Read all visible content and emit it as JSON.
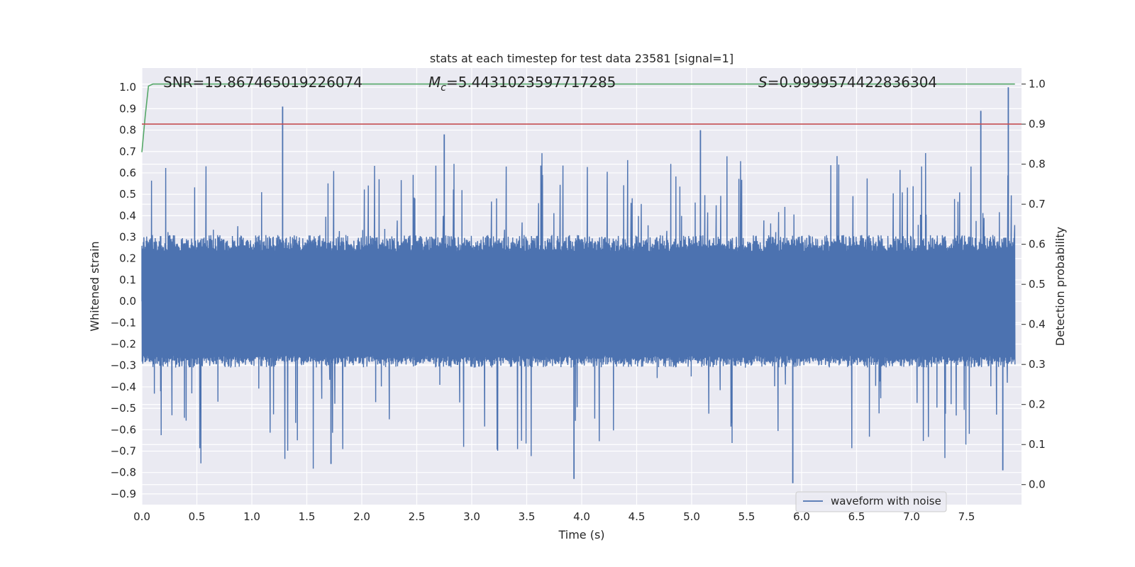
{
  "chart_data": {
    "type": "line",
    "title": "stats at each timestep for test data 23581 [signal=1]",
    "xlabel": "Time (s)",
    "ylabel": "Whitened strain",
    "y2label": "Detection probability",
    "xlim": [
      0.0,
      8.0
    ],
    "ylim": [
      -0.95,
      1.09
    ],
    "y2lim": [
      -0.05,
      1.04
    ],
    "xticks": [
      "0.0",
      "0.5",
      "1.0",
      "1.5",
      "2.0",
      "2.5",
      "3.0",
      "3.5",
      "4.0",
      "4.5",
      "5.0",
      "5.5",
      "6.0",
      "6.5",
      "7.0",
      "7.5"
    ],
    "yticks": [
      "1.0",
      "0.9",
      "0.8",
      "0.7",
      "0.6",
      "0.5",
      "0.4",
      "0.3",
      "0.2",
      "0.1",
      "0.0",
      "−0.1",
      "−0.2",
      "−0.3",
      "−0.4",
      "−0.5",
      "−0.6",
      "−0.7",
      "−0.8",
      "−0.9"
    ],
    "y2ticks": [
      "1.0",
      "0.9",
      "0.8",
      "0.7",
      "0.6",
      "0.5",
      "0.4",
      "0.3",
      "0.2",
      "0.1",
      "0.0"
    ],
    "grid": true,
    "legend": "bottom-center",
    "annotations": {
      "snr": "SNR=15.867465019226074",
      "mc_symbol": "M",
      "mc_sub": "c",
      "mc_value": "=5.4431023597717285",
      "s_symbol": "S",
      "s_value": "=0.9999574422836304"
    },
    "series": [
      {
        "name": "waveform with noise",
        "axis": "left",
        "color": "#4c72b0",
        "description_of_envelope": "dense noise spanning roughly -0.3..0.25 with spikes",
        "x_range": [
          0.0,
          7.94
        ],
        "y_range": [
          -0.85,
          1.0
        ],
        "notable_peaks": [
          {
            "x": 1.28,
            "y": 0.91
          },
          {
            "x": 7.63,
            "y": 0.89
          },
          {
            "x": 7.88,
            "y": 1.0
          },
          {
            "x": 2.75,
            "y": 0.78
          },
          {
            "x": 5.08,
            "y": 0.8
          },
          {
            "x": 5.92,
            "y": -0.85
          },
          {
            "x": 3.93,
            "y": -0.83
          },
          {
            "x": 1.72,
            "y": -0.76
          },
          {
            "x": 7.83,
            "y": -0.79
          }
        ]
      },
      {
        "name": "",
        "axis": "right",
        "color": "#55a868",
        "x": [
          0.0,
          0.03,
          0.06,
          0.1,
          0.15,
          7.94
        ],
        "y": [
          0.83,
          0.92,
          0.995,
          1.0,
          1.0,
          1.0
        ]
      },
      {
        "name": "",
        "axis": "right",
        "color": "#c44e52",
        "x": [
          0.0,
          8.0
        ],
        "y": [
          0.9,
          0.9
        ]
      }
    ]
  }
}
